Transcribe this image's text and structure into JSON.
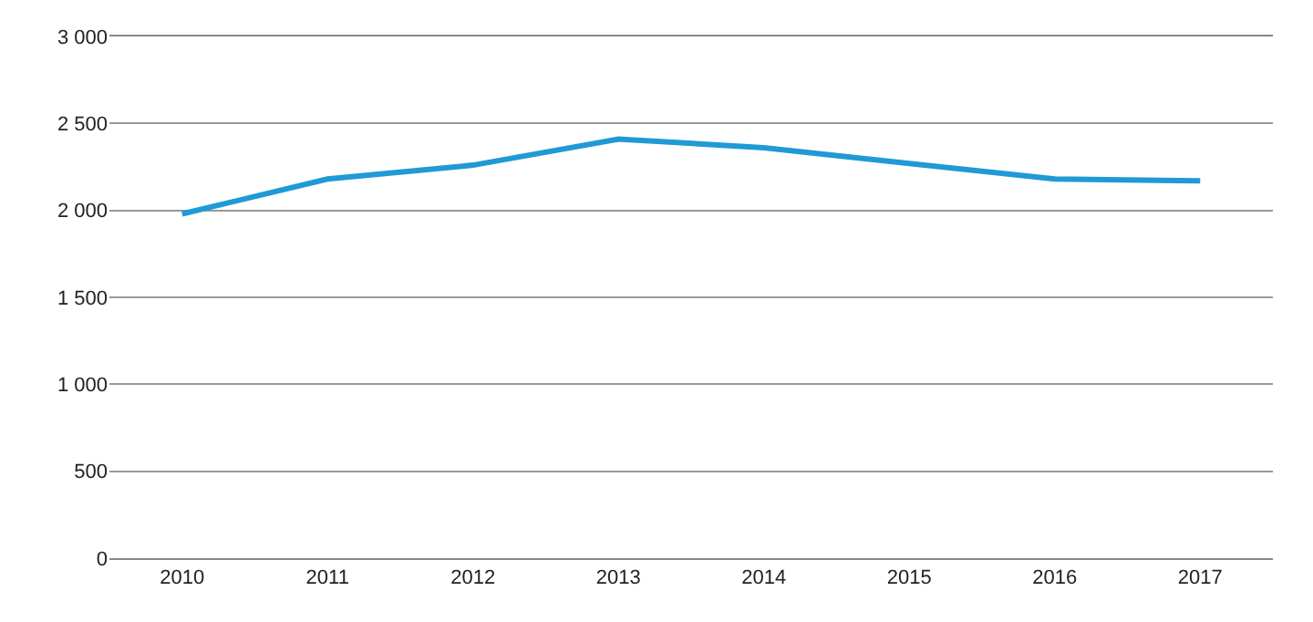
{
  "chart_data": {
    "type": "line",
    "categories": [
      "2010",
      "2011",
      "2012",
      "2013",
      "2014",
      "2015",
      "2016",
      "2017"
    ],
    "series": [
      {
        "color": "#1f9ad6",
        "values": [
          1980,
          2180,
          2260,
          2410,
          2360,
          2270,
          2180,
          2170
        ]
      }
    ],
    "ylim": [
      0,
      3000
    ],
    "yticks": [
      0,
      {
        "value": 500,
        "label": "500"
      },
      {
        "value": 1000,
        "label": "1 000"
      },
      {
        "value": 1500,
        "label": "1 500"
      },
      {
        "value": 2000,
        "label": "2 000"
      },
      {
        "value": 2500,
        "label": "2 500"
      },
      {
        "value": 3000,
        "label": "3 000"
      }
    ],
    "grid": "y",
    "legend": false,
    "marker": "none",
    "line_style": "solid"
  }
}
